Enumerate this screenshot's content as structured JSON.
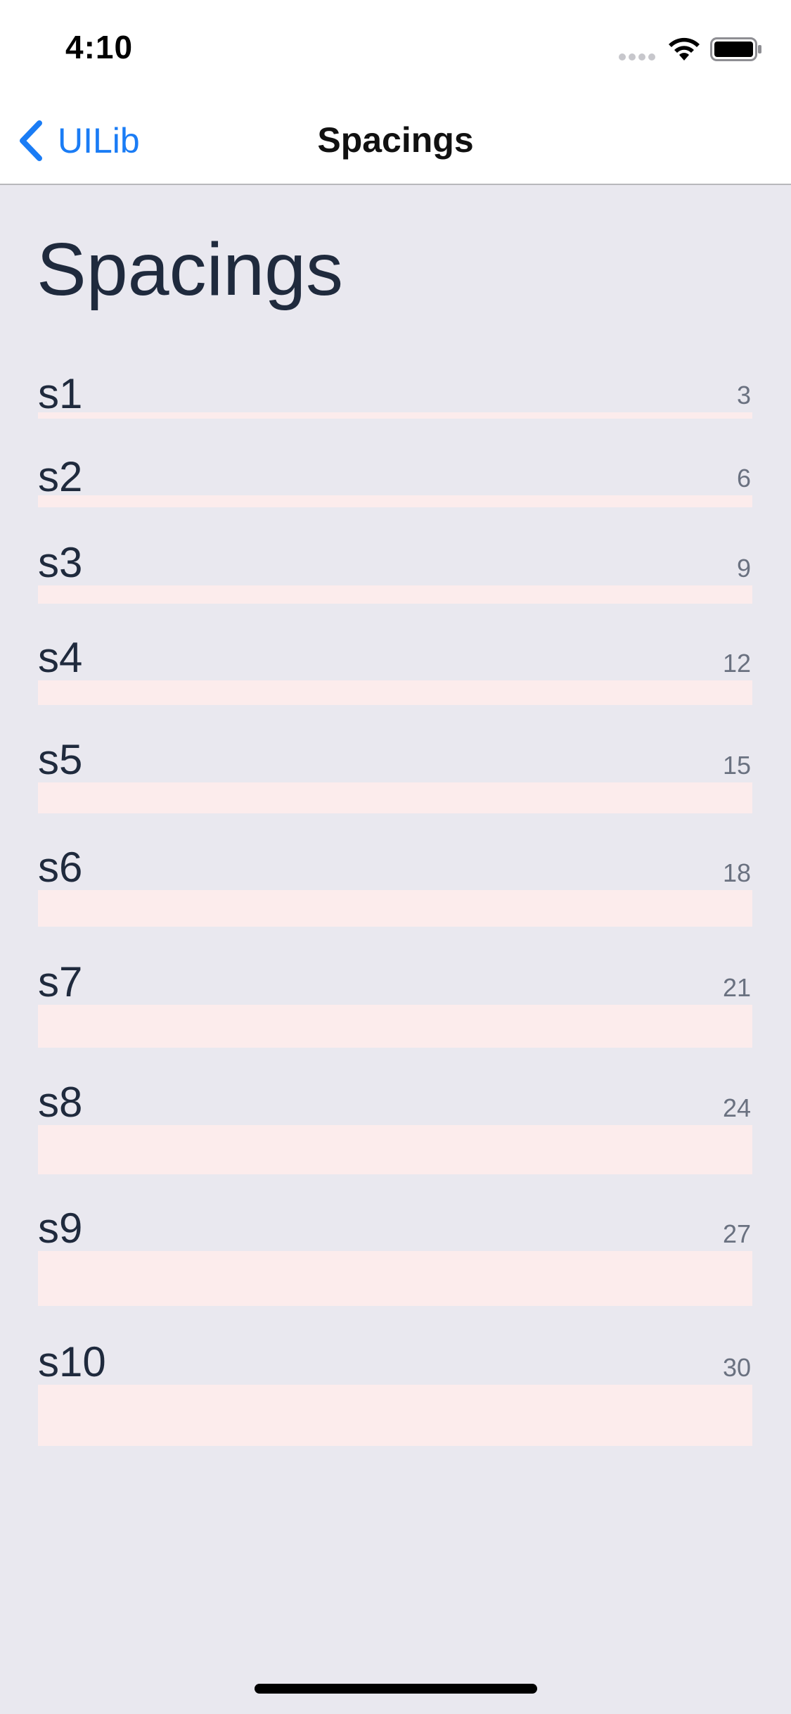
{
  "status_bar": {
    "time": "4:10",
    "icons": [
      "cellular-dots-icon",
      "wifi-icon",
      "battery-icon"
    ]
  },
  "nav": {
    "back_label": "UILib",
    "title": "Spacings",
    "accent_color": "#1a7cf5"
  },
  "page": {
    "title": "Spacings"
  },
  "spacings": [
    {
      "label": "s1",
      "value": "3"
    },
    {
      "label": "s2",
      "value": "6"
    },
    {
      "label": "s3",
      "value": "9"
    },
    {
      "label": "s4",
      "value": "12"
    },
    {
      "label": "s5",
      "value": "15"
    },
    {
      "label": "s6",
      "value": "18"
    },
    {
      "label": "s7",
      "value": "21"
    },
    {
      "label": "s8",
      "value": "24"
    },
    {
      "label": "s9",
      "value": "27"
    },
    {
      "label": "s10",
      "value": "30"
    }
  ],
  "colors": {
    "background": "#e9e8ef",
    "bar": "#fcecec",
    "text": "#1f2a3d",
    "value_text": "#6a7180"
  }
}
